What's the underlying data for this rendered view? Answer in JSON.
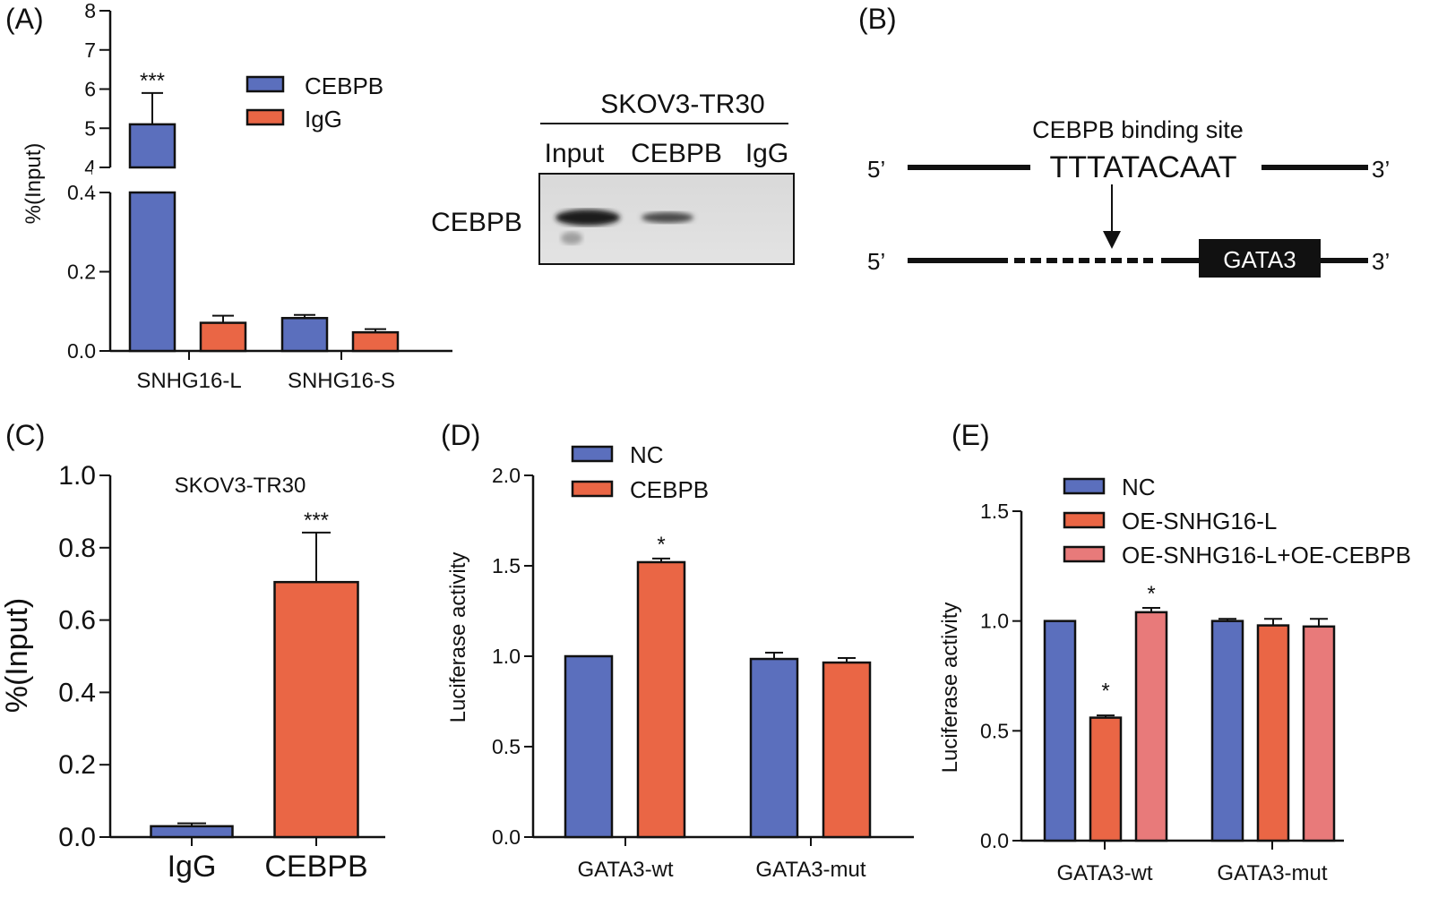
{
  "colors": {
    "blue": "#5b6fbd",
    "orange": "#ea6645",
    "pink": "#e87a7a",
    "sequence_red": "#e8281e",
    "black": "#111111"
  },
  "panels": {
    "A": "(A)",
    "B": "(B)",
    "C": "(C)",
    "D": "(D)",
    "E": "(E)"
  },
  "western_blot": {
    "cell_line": "SKOV3-TR30",
    "lanes": [
      "Input",
      "CEBPB",
      "IgG"
    ],
    "row_label": "CEBPB"
  },
  "schematic": {
    "title": "CEBPB binding site",
    "sequence": "TTTATACAAT",
    "five_prime": "5’",
    "three_prime": "3’",
    "gene_box": "GATA3"
  },
  "chart_data": [
    {
      "id": "A",
      "type": "bar",
      "ylabel": "%(Input)",
      "categories": [
        "SNHG16-L",
        "SNHG16-S"
      ],
      "y_axis_break": true,
      "ylim_lower": [
        0,
        0.4
      ],
      "ylim_upper": [
        4,
        8
      ],
      "yticks_lower": [
        "0.0",
        "0.2",
        "0.4"
      ],
      "yticks_upper": [
        "4",
        "5",
        "6",
        "7",
        "8"
      ],
      "series": [
        {
          "name": "CEBPB",
          "color": "#5b6fbd",
          "values": [
            5.1,
            0.083
          ],
          "errors": [
            0.8,
            0.008
          ]
        },
        {
          "name": "IgG",
          "color": "#ea6645",
          "values": [
            0.071,
            0.047
          ],
          "errors": [
            0.018,
            0.008
          ]
        }
      ],
      "annotations": [
        "***",
        ""
      ]
    },
    {
      "id": "C",
      "type": "bar",
      "title": "SKOV3-TR30",
      "ylabel": "%(Input)",
      "categories": [
        "IgG",
        "CEBPB"
      ],
      "ylim": [
        0,
        1.0
      ],
      "yticks": [
        "0.0",
        "0.2",
        "0.4",
        "0.6",
        "0.8",
        "1.0"
      ],
      "series": [
        {
          "color_by_category": [
            "#5b6fbd",
            "#ea6645"
          ],
          "values": [
            0.03,
            0.705
          ],
          "errors": [
            0.008,
            0.137
          ]
        }
      ],
      "annotations": [
        "",
        "***"
      ]
    },
    {
      "id": "D",
      "type": "bar",
      "ylabel": "Luciferase activity",
      "categories": [
        "GATA3-wt",
        "GATA3-mut"
      ],
      "ylim": [
        0,
        2.0
      ],
      "yticks": [
        "0.0",
        "0.5",
        "1.0",
        "1.5",
        "2.0"
      ],
      "series": [
        {
          "name": "NC",
          "color": "#5b6fbd",
          "values": [
            1.0,
            0.985
          ],
          "errors": [
            0,
            0.035
          ]
        },
        {
          "name": "CEBPB",
          "color": "#ea6645",
          "values": [
            1.52,
            0.965
          ],
          "errors": [
            0.02,
            0.025
          ]
        }
      ],
      "annotations": [
        [
          "",
          "*"
        ],
        [
          "",
          ""
        ]
      ]
    },
    {
      "id": "E",
      "type": "bar",
      "ylabel": "Luciferase activity",
      "categories": [
        "GATA3-wt",
        "GATA3-mut"
      ],
      "ylim": [
        0,
        1.5
      ],
      "yticks": [
        "0.0",
        "0.5",
        "1.0",
        "1.5"
      ],
      "series": [
        {
          "name": "NC",
          "color": "#5b6fbd",
          "values": [
            1.0,
            1.0
          ],
          "errors": [
            0,
            0.01
          ]
        },
        {
          "name": "OE-SNHG16-L",
          "color": "#ea6645",
          "values": [
            0.56,
            0.98
          ],
          "errors": [
            0.01,
            0.03
          ]
        },
        {
          "name": "OE-SNHG16-L+OE-CEBPB",
          "color": "#e87a7a",
          "values": [
            1.04,
            0.975
          ],
          "errors": [
            0.02,
            0.035
          ]
        }
      ],
      "annotations": [
        [
          "",
          "*",
          "*"
        ],
        [
          "",
          "",
          ""
        ]
      ]
    }
  ]
}
